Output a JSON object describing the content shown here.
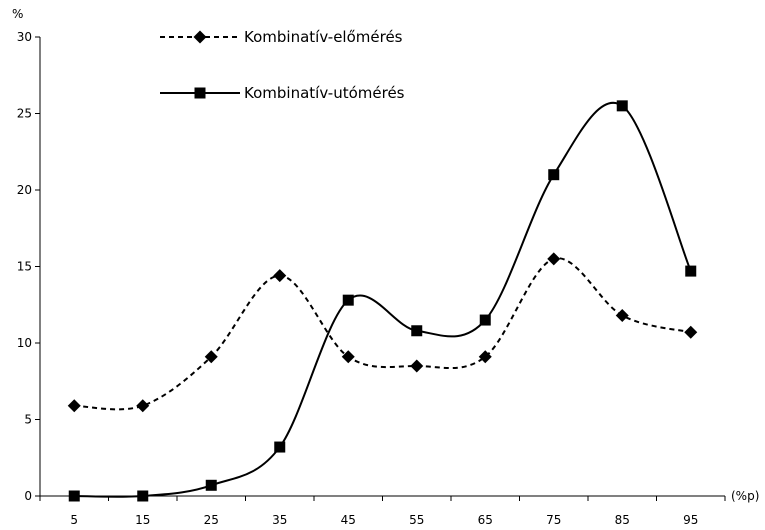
{
  "chart_data": {
    "type": "line",
    "title": "",
    "xlabel": "(%p)",
    "ylabel": "%",
    "x": [
      5,
      15,
      25,
      35,
      45,
      55,
      65,
      75,
      85,
      95
    ],
    "x_tick_labels": [
      "5",
      "15",
      "25",
      "35",
      "45",
      "55",
      "65",
      "75",
      "85",
      "95"
    ],
    "ylim": [
      0,
      30
    ],
    "y_ticks": [
      0,
      5,
      10,
      15,
      20,
      25,
      30
    ],
    "y_tick_labels": [
      "0",
      "5",
      "10",
      "15",
      "20",
      "25",
      "30"
    ],
    "grid": false,
    "smooth": true,
    "legend_position": "top-left",
    "series": [
      {
        "name": "Kombinatív-előmérés",
        "values": [
          5.9,
          5.9,
          9.1,
          14.4,
          9.1,
          8.5,
          9.1,
          15.5,
          11.8,
          10.7
        ],
        "line_style": "dashed",
        "marker": "diamond",
        "color": "#000000"
      },
      {
        "name": "Kombinatív-utómérés",
        "values": [
          0.0,
          0.0,
          0.7,
          3.2,
          12.8,
          10.8,
          11.5,
          21.0,
          25.5,
          14.7
        ],
        "line_style": "solid",
        "marker": "square",
        "color": "#000000"
      }
    ]
  }
}
